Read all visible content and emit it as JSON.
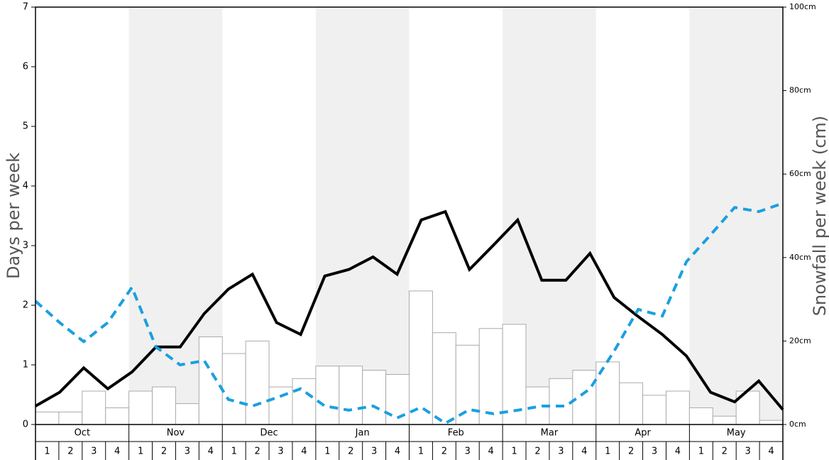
{
  "chart_data": {
    "type": "bar-line",
    "y_label": "Days per week",
    "y2_label": "Snowfall per week (cm)",
    "months": [
      "Oct",
      "Nov",
      "Dec",
      "Jan",
      "Feb",
      "Mar",
      "Apr",
      "May"
    ],
    "weeks": [
      1,
      2,
      3,
      4
    ],
    "band_color": "#f0f0f0",
    "ylim": [
      0,
      7
    ],
    "yticks": [
      0,
      1,
      2,
      3,
      4,
      5,
      6,
      7
    ],
    "y2lim": [
      0,
      100
    ],
    "y2ticks": [
      {
        "value": 0,
        "label": "0cm"
      },
      {
        "value": 20,
        "label": "20cm"
      },
      {
        "value": 40,
        "label": "40cm"
      },
      {
        "value": 60,
        "label": "60cm"
      },
      {
        "value": 80,
        "label": "80cm"
      },
      {
        "value": 100,
        "label": "100cm"
      }
    ],
    "series": [
      {
        "type": "bar",
        "axis": "y2",
        "color": "#ffffff",
        "edge_color": "#aaaaaa",
        "values": [
          3,
          3,
          8,
          4,
          8,
          9,
          5,
          21,
          17,
          20,
          9,
          11,
          14,
          14,
          13,
          12,
          32,
          22,
          19,
          23,
          24,
          9,
          11,
          13,
          15,
          10,
          7,
          8,
          4,
          2,
          8,
          1
        ]
      },
      {
        "type": "line",
        "color": "#000000",
        "dashed": false,
        "values": [
          0.31,
          0.54,
          0.95,
          0.6,
          0.88,
          1.3,
          1.3,
          1.86,
          2.27,
          2.52,
          1.71,
          1.51,
          2.49,
          2.6,
          2.81,
          2.52,
          3.43,
          3.57,
          2.6,
          3.01,
          3.43,
          2.42,
          2.42,
          2.87,
          2.13,
          1.81,
          1.51,
          1.15,
          0.54,
          0.38,
          0.73,
          0.25
        ]
      },
      {
        "type": "line",
        "color": "#1a9fe0",
        "dashed": true,
        "values": [
          2.07,
          1.71,
          1.39,
          1.71,
          2.3,
          1.3,
          1.0,
          1.07,
          0.42,
          0.31,
          0.45,
          0.6,
          0.31,
          0.24,
          0.31,
          0.11,
          0.29,
          0.02,
          0.25,
          0.18,
          0.24,
          0.31,
          0.31,
          0.6,
          1.23,
          1.93,
          1.82,
          2.73,
          3.18,
          3.64,
          3.57,
          3.71
        ]
      }
    ]
  }
}
